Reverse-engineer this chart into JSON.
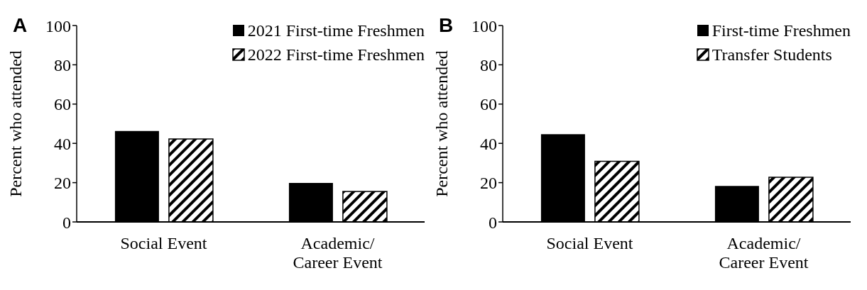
{
  "chart_data": [
    {
      "type": "bar",
      "title": "A",
      "ylabel": "Percent who attended",
      "categories": [
        "Social Event",
        "Academic/\nCareer Event"
      ],
      "series": [
        {
          "name": "2021 First-time Freshmen",
          "color": "#000000",
          "values": [
            46.3,
            19.9
          ]
        },
        {
          "name": "2022 First-time Freshmen",
          "color": "#000000",
          "values": [
            42.2,
            15.5
          ]
        }
      ],
      "ylim": [
        0,
        100
      ],
      "yticks": [
        0,
        20,
        40,
        60,
        80,
        100
      ],
      "grid": false,
      "legend": "top right"
    },
    {
      "type": "bar",
      "title": "B",
      "ylabel": "Percent who attended",
      "categories": [
        "Social Event",
        "Academic/\nCareer Event"
      ],
      "series": [
        {
          "name": "First-time Freshmen",
          "color": "#000000",
          "values": [
            44.7,
            18.3
          ]
        },
        {
          "name": "Transfer Students",
          "color": "#000000",
          "values": [
            30.9,
            22.7
          ]
        }
      ],
      "ylim": [
        0,
        100
      ],
      "yticks": [
        0,
        20,
        40,
        60,
        80,
        100
      ],
      "grid": false,
      "legend": "top right"
    }
  ]
}
